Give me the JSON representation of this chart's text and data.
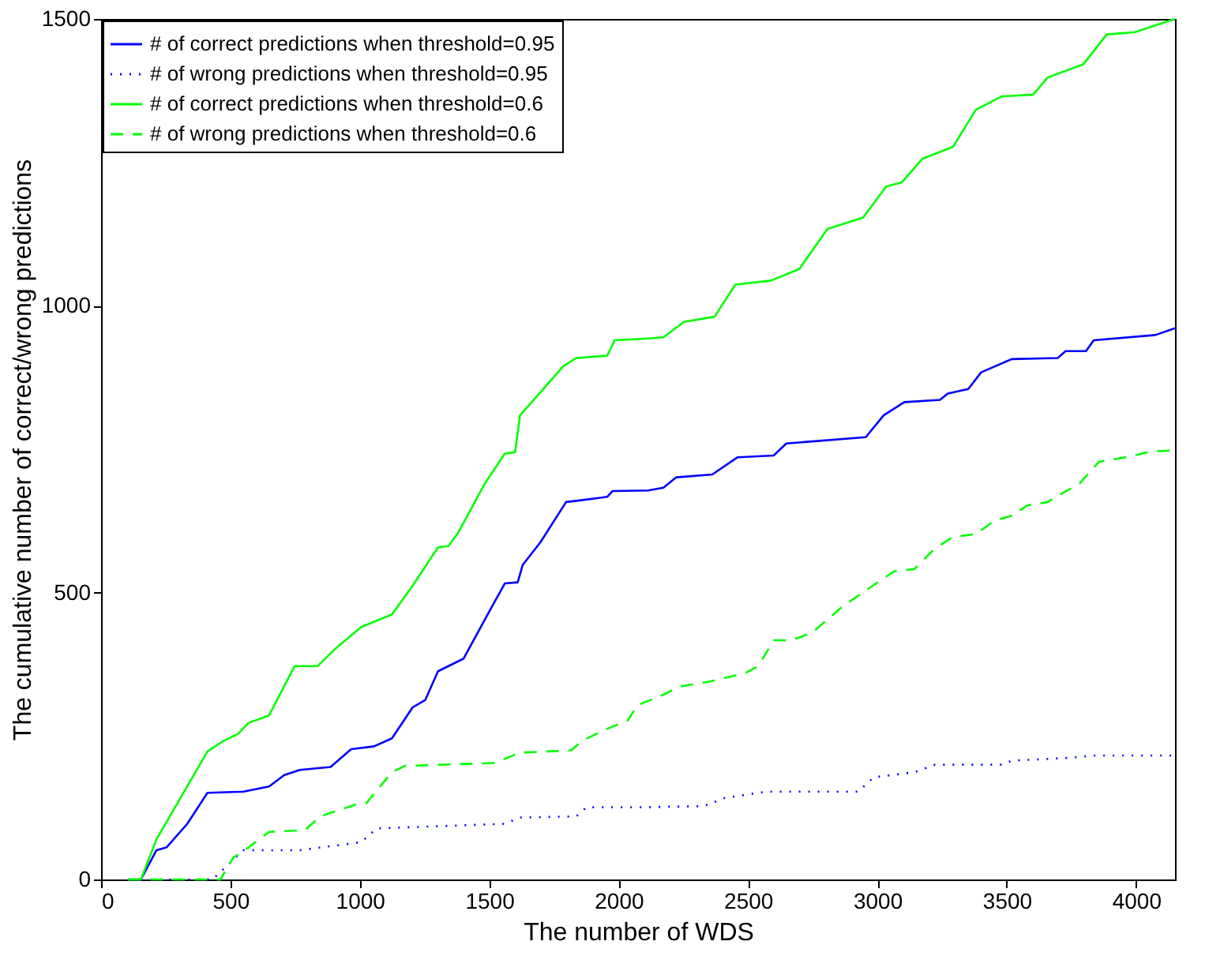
{
  "chart_data": {
    "type": "line",
    "xlabel": "The number of WDS",
    "ylabel": "The cumulative number of correct/wrong predictions",
    "xlim": [
      0,
      4150
    ],
    "ylim": [
      0,
      1500
    ],
    "xticks": [
      0,
      500,
      1000,
      1500,
      2000,
      2500,
      3000,
      3500,
      4000
    ],
    "yticks": [
      0,
      500,
      1000,
      1500
    ],
    "grid": false,
    "legend": "top left",
    "marker": "none",
    "series": [
      {
        "name": "# of correct predictions when threshold=0.95",
        "color": "#0000ff",
        "line_style": "solid",
        "x": [
          105,
          154,
          214,
          253,
          333,
          411,
          550,
          649,
          708,
          768,
          887,
          966,
          1055,
          1124,
          1204,
          1253,
          1302,
          1401,
          1500,
          1560,
          1610,
          1629,
          1698,
          1797,
          1837,
          1956,
          1976,
          2114,
          2173,
          2223,
          2362,
          2460,
          2599,
          2648,
          2955,
          3024,
          3104,
          3242,
          3272,
          3351,
          3401,
          3519,
          3697,
          3727,
          3806,
          3836,
          4074,
          4150
        ],
        "values": [
          0,
          0,
          51,
          56,
          97,
          151,
          153,
          162,
          182,
          191,
          196,
          227,
          232,
          246,
          300,
          313,
          363,
          385,
          467,
          516,
          518,
          548,
          588,
          658,
          660,
          667,
          677,
          678,
          683,
          701,
          706,
          736,
          739,
          760,
          771,
          809,
          832,
          836,
          847,
          855,
          884,
          907,
          909,
          921,
          921,
          940,
          949,
          961
        ]
      },
      {
        "name": "# of wrong predictions when threshold=0.95",
        "color": "#0000ff",
        "line_style": "dotted",
        "x": [
          154,
          431,
          550,
          768,
          1005,
          1065,
          1560,
          1619,
          1837,
          1876,
          2114,
          2330,
          2410,
          2570,
          2926,
          2985,
          3143,
          3222,
          3480,
          3519,
          3737,
          3836,
          4150
        ],
        "values": [
          0,
          0,
          51,
          51,
          65,
          89,
          97,
          108,
          110,
          126,
          126,
          128,
          142,
          153,
          153,
          178,
          187,
          200,
          200,
          207,
          212,
          216,
          216
        ]
      },
      {
        "name": "# of correct predictions when threshold=0.6",
        "color": "#00ff00",
        "line_style": "solid",
        "x": [
          105,
          154,
          214,
          411,
          471,
          530,
          570,
          649,
          748,
          837,
          907,
          1005,
          1124,
          1204,
          1302,
          1342,
          1382,
          1480,
          1560,
          1600,
          1619,
          1787,
          1837,
          1956,
          1985,
          2114,
          2173,
          2252,
          2371,
          2451,
          2589,
          2698,
          2807,
          2945,
          3034,
          3094,
          3173,
          3292,
          3381,
          3480,
          3602,
          3658,
          3796,
          3886,
          3995,
          4150
        ],
        "values": [
          0,
          0,
          70,
          223,
          241,
          254,
          273,
          286,
          372,
          372,
          403,
          440,
          462,
          512,
          579,
          581,
          606,
          688,
          742,
          745,
          809,
          895,
          909,
          913,
          940,
          943,
          945,
          972,
          981,
          1037,
          1044,
          1064,
          1134,
          1154,
          1208,
          1215,
          1256,
          1277,
          1342,
          1365,
          1368,
          1398,
          1421,
          1473,
          1477,
          1500
        ]
      },
      {
        "name": "# of wrong predictions when threshold=0.6",
        "color": "#00ff00",
        "line_style": "dashed",
        "x": [
          105,
          461,
          511,
          570,
          649,
          788,
          847,
          986,
          1025,
          1124,
          1174,
          1520,
          1619,
          1817,
          1857,
          1936,
          2035,
          2074,
          2173,
          2233,
          2352,
          2490,
          2540,
          2599,
          2668,
          2747,
          2866,
          2995,
          3064,
          3143,
          3222,
          3292,
          3381,
          3450,
          3519,
          3579,
          3658,
          3737,
          3777,
          3856,
          3974,
          4054,
          4150
        ],
        "values": [
          0,
          0,
          38,
          56,
          83,
          86,
          110,
          131,
          133,
          187,
          198,
          203,
          221,
          225,
          241,
          259,
          277,
          304,
          322,
          336,
          345,
          360,
          372,
          417,
          417,
          430,
          476,
          516,
          537,
          541,
          577,
          597,
          602,
          625,
          634,
          652,
          658,
          679,
          688,
          728,
          737,
          746,
          748
        ]
      }
    ]
  }
}
